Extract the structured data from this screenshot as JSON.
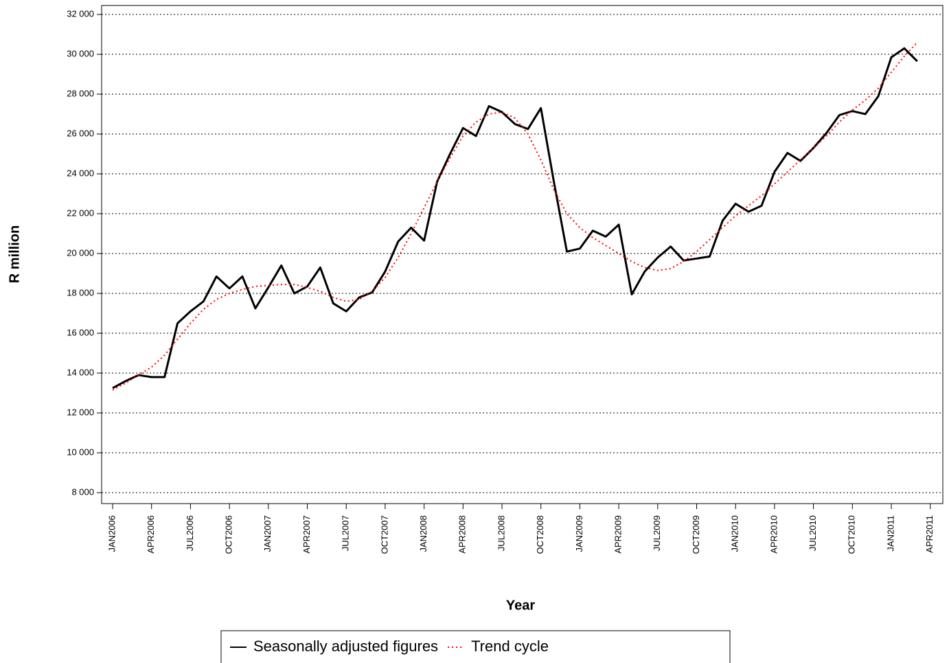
{
  "chart_data": {
    "type": "line",
    "x_title": "Year",
    "y_title": "R million",
    "categories": [
      "JAN2006",
      null,
      null,
      "APR2006",
      null,
      null,
      "JUL2006",
      null,
      null,
      "OCT2006",
      null,
      null,
      "JAN2007",
      null,
      null,
      "APR2007",
      null,
      null,
      "JUL2007",
      null,
      null,
      "OCT2007",
      null,
      null,
      "JAN2008",
      null,
      null,
      "APR2008",
      null,
      null,
      "JUL2008",
      null,
      null,
      "OCT2008",
      null,
      null,
      "JAN2009",
      null,
      null,
      "APR2009",
      null,
      null,
      "JUL2009",
      null,
      null,
      "OCT2009",
      null,
      null,
      "JAN2010",
      null,
      null,
      "APR2010",
      null,
      null,
      "JUL2010",
      null,
      null,
      "OCT2010",
      null,
      null,
      "JAN2011",
      null,
      null,
      "APR2011"
    ],
    "series": [
      {
        "name": "Seasonally adjusted figures",
        "color": "#000000",
        "dash": "solid",
        "values": [
          13250,
          13600,
          13900,
          13800,
          13800,
          16500,
          17100,
          17600,
          18850,
          18250,
          18850,
          17250,
          18300,
          19400,
          18000,
          18350,
          19300,
          17500,
          17100,
          17800,
          18050,
          19100,
          20600,
          21300,
          20650,
          23600,
          25000,
          26300,
          25900,
          27400,
          27100,
          26500,
          26250,
          27300,
          23600,
          20100,
          20250,
          21150,
          20850,
          21450,
          17950,
          19100,
          19800,
          20350,
          19650,
          19750,
          19850,
          21650,
          22500,
          22100,
          22400,
          24100,
          25050,
          24650,
          25300,
          26050,
          26950,
          27150,
          27000,
          27900,
          29850,
          30300,
          29650,
          null
        ]
      },
      {
        "name": "Trend cycle",
        "color": "#ff0000",
        "dash": "dotted",
        "values": [
          13150,
          13500,
          13900,
          14300,
          14900,
          15700,
          16500,
          17200,
          17700,
          18000,
          18200,
          18350,
          18400,
          18450,
          18450,
          18300,
          18100,
          17800,
          17600,
          17700,
          18100,
          18800,
          19800,
          21000,
          22300,
          23600,
          24800,
          25900,
          26600,
          27000,
          27100,
          26800,
          26000,
          24700,
          23200,
          22000,
          21300,
          20800,
          20400,
          20000,
          19600,
          19300,
          19150,
          19250,
          19600,
          20100,
          20700,
          21300,
          21900,
          22400,
          22900,
          23500,
          24100,
          24700,
          25300,
          25900,
          26600,
          27200,
          27700,
          28300,
          29100,
          29900,
          30600,
          null
        ]
      }
    ],
    "ylim": [
      7450,
      32450
    ],
    "yticks": [
      {
        "value": 8000,
        "label": "8 000"
      },
      {
        "value": 10000,
        "label": "10 000"
      },
      {
        "value": 12000,
        "label": "12 000"
      },
      {
        "value": 14000,
        "label": "14 000"
      },
      {
        "value": 16000,
        "label": "16 000"
      },
      {
        "value": 18000,
        "label": "18 000"
      },
      {
        "value": 20000,
        "label": "20 000"
      },
      {
        "value": 22000,
        "label": "22 000"
      },
      {
        "value": 24000,
        "label": "24 000"
      },
      {
        "value": 26000,
        "label": "26 000"
      },
      {
        "value": 28000,
        "label": "28 000"
      },
      {
        "value": 30000,
        "label": "30 000"
      },
      {
        "value": 32000,
        "label": "32 000"
      }
    ],
    "grid": true
  }
}
